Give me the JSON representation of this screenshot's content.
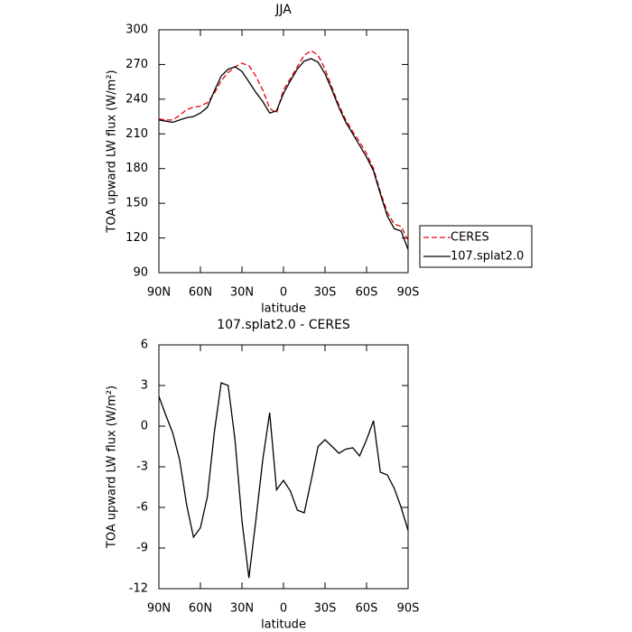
{
  "chart_data": [
    {
      "type": "line",
      "title": "JJA",
      "xlabel": "latitude",
      "ylabel": "TOA upward LW flux (W/m²)",
      "x": [
        90,
        85,
        80,
        75,
        70,
        65,
        60,
        55,
        50,
        45,
        40,
        35,
        30,
        25,
        20,
        15,
        10,
        5,
        0,
        -5,
        -10,
        -15,
        -20,
        -25,
        -30,
        -35,
        -40,
        -45,
        -50,
        -55,
        -60,
        -65,
        -70,
        -75,
        -80,
        -85,
        -90
      ],
      "series": [
        {
          "name": "CERES",
          "color": "#e8000b",
          "linestyle": "dashed",
          "values": [
            223,
            222,
            222,
            226,
            231,
            233,
            234,
            237,
            245,
            256,
            263,
            268,
            271,
            269,
            260,
            248,
            232,
            228,
            248,
            258,
            268,
            278,
            282,
            278,
            266,
            250,
            235,
            222,
            212,
            203,
            193,
            180,
            160,
            142,
            132,
            130,
            118
          ]
        },
        {
          "name": "107.splat2.0",
          "color": "#000000",
          "linestyle": "solid",
          "values": [
            222,
            221,
            220,
            222,
            224,
            225,
            228,
            233,
            247,
            260,
            266,
            268,
            264,
            255,
            246,
            238,
            228,
            230,
            245,
            256,
            266,
            273,
            275,
            272,
            262,
            248,
            233,
            220,
            210,
            200,
            190,
            178,
            158,
            139,
            128,
            126,
            110
          ]
        }
      ],
      "xlim": [
        90,
        -90
      ],
      "xticks": [
        {
          "value": 90,
          "label": "90N"
        },
        {
          "value": 60,
          "label": "60N"
        },
        {
          "value": 30,
          "label": "30N"
        },
        0,
        {
          "value": -30,
          "label": "30S"
        },
        {
          "value": -60,
          "label": "60S"
        },
        {
          "value": -90,
          "label": "90S"
        }
      ],
      "ylim": [
        90,
        300
      ],
      "yticks": [
        90,
        120,
        150,
        180,
        210,
        240,
        270,
        300
      ],
      "legend": "outside-right"
    },
    {
      "type": "line",
      "title": "107.splat2.0 - CERES",
      "xlabel": "latitude",
      "ylabel": "TOA upward LW flux (W/m²)",
      "x": [
        90,
        85,
        80,
        75,
        70,
        65,
        60,
        55,
        50,
        45,
        40,
        35,
        30,
        25,
        20,
        15,
        10,
        5,
        0,
        -5,
        -10,
        -15,
        -20,
        -25,
        -30,
        -35,
        -40,
        -45,
        -50,
        -55,
        -60,
        -65,
        -70,
        -75,
        -80,
        -85,
        -90
      ],
      "series": [
        {
          "color": "#000000",
          "linestyle": "solid",
          "values": [
            2.2,
            0.8,
            -0.5,
            -2.5,
            -5.8,
            -8.2,
            -7.5,
            -5.2,
            -0.5,
            3.2,
            3.0,
            -1.0,
            -7.0,
            -11.2,
            -7.0,
            -2.5,
            1.0,
            -4.7,
            -4.0,
            -4.8,
            -6.2,
            -6.4,
            -4.0,
            -1.5,
            -1.0,
            -1.5,
            -2.0,
            -1.7,
            -1.6,
            -2.2,
            -1.0,
            0.4,
            -3.4,
            -3.6,
            -4.6,
            -6.0,
            -7.7
          ]
        }
      ],
      "xlim": [
        90,
        -90
      ],
      "xticks": [
        {
          "value": 90,
          "label": "90N"
        },
        {
          "value": 60,
          "label": "60N"
        },
        {
          "value": 30,
          "label": "30N"
        },
        0,
        {
          "value": -30,
          "label": "30S"
        },
        {
          "value": -60,
          "label": "60S"
        },
        {
          "value": -90,
          "label": "90S"
        }
      ],
      "ylim": [
        -12,
        6
      ],
      "yticks": [
        -12,
        -9,
        -6,
        -3,
        0,
        3,
        6
      ]
    }
  ]
}
